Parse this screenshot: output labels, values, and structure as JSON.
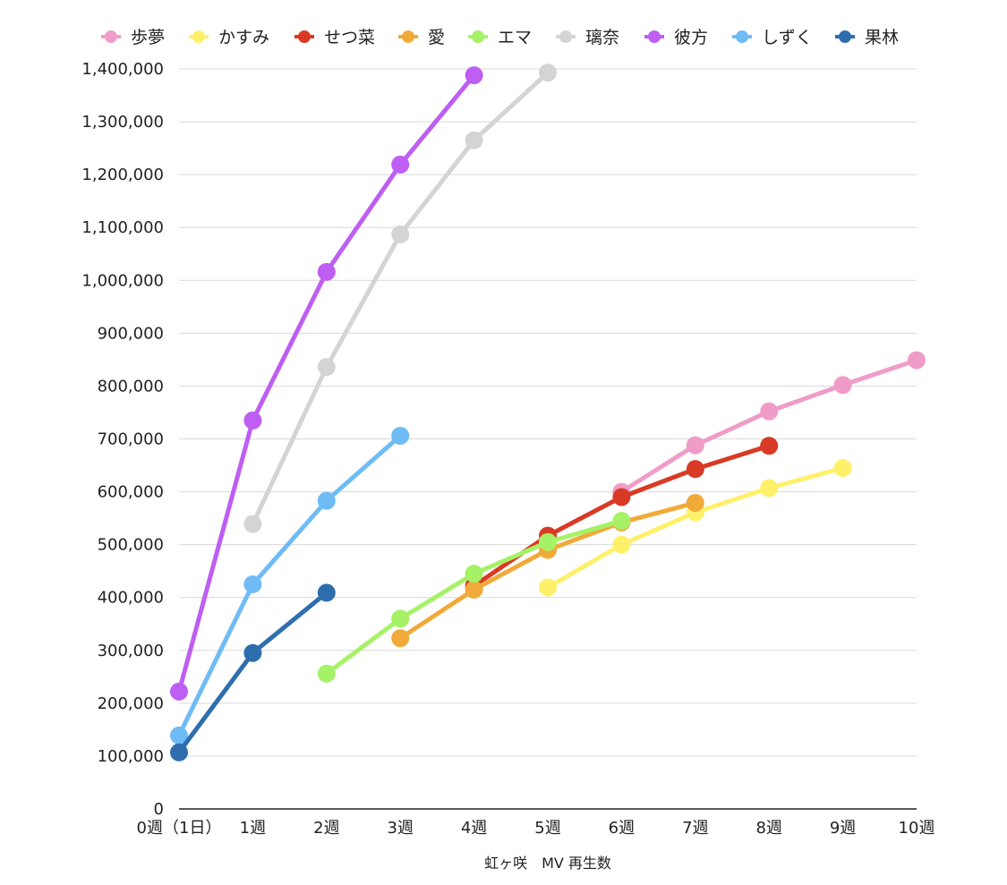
{
  "chart_data": {
    "type": "line",
    "title": "",
    "xlabel": "虹ヶ咲　MV 再生数",
    "ylabel": "",
    "categories": [
      "0週（1日）",
      "1週",
      "2週",
      "3週",
      "4週",
      "5週",
      "6週",
      "7週",
      "8週",
      "9週",
      "10週"
    ],
    "yticks": [
      "0",
      "100,000",
      "200,000",
      "300,000",
      "400,000",
      "500,000",
      "600,000",
      "700,000",
      "800,000",
      "900,000",
      "1,000,000",
      "1,100,000",
      "1,200,000",
      "1,300,000",
      "1,400,000"
    ],
    "ylim": [
      0,
      1400000
    ],
    "grid": true,
    "legend_position": "top",
    "series": [
      {
        "name": "歩夢",
        "color": "#F09CC8",
        "values": [
          null,
          null,
          null,
          null,
          null,
          null,
          600000,
          688000,
          752000,
          802000,
          849000
        ]
      },
      {
        "name": "かすみ",
        "color": "#FFF06A",
        "values": [
          null,
          null,
          null,
          null,
          null,
          419000,
          500000,
          561000,
          607000,
          645000,
          null
        ]
      },
      {
        "name": "せつ菜",
        "color": "#D93A25",
        "values": [
          null,
          null,
          null,
          null,
          422000,
          517000,
          590000,
          643000,
          687000,
          null,
          null
        ]
      },
      {
        "name": "愛",
        "color": "#F0AA3A",
        "values": [
          null,
          null,
          null,
          323000,
          415000,
          490000,
          542000,
          579000,
          null,
          null,
          null
        ]
      },
      {
        "name": "エマ",
        "color": "#A6F266",
        "values": [
          null,
          null,
          256000,
          360000,
          445000,
          505000,
          545000,
          null,
          null,
          null,
          null
        ]
      },
      {
        "name": "璃奈",
        "color": "#D4D4D4",
        "values": [
          null,
          539000,
          836000,
          1087000,
          1265000,
          1393000,
          null,
          null,
          null,
          null,
          null
        ]
      },
      {
        "name": "彼方",
        "color": "#BE5EF2",
        "values": [
          222000,
          735000,
          1016000,
          1219000,
          1388000,
          null,
          null,
          null,
          null,
          null,
          null
        ]
      },
      {
        "name": "しずく",
        "color": "#6FBBF5",
        "values": [
          139000,
          425000,
          583000,
          706000,
          null,
          null,
          null,
          null,
          null,
          null,
          null
        ]
      },
      {
        "name": "果林",
        "color": "#2F6EAE",
        "values": [
          107000,
          295000,
          409000,
          null,
          null,
          null,
          null,
          null,
          null,
          null,
          null
        ]
      }
    ]
  }
}
